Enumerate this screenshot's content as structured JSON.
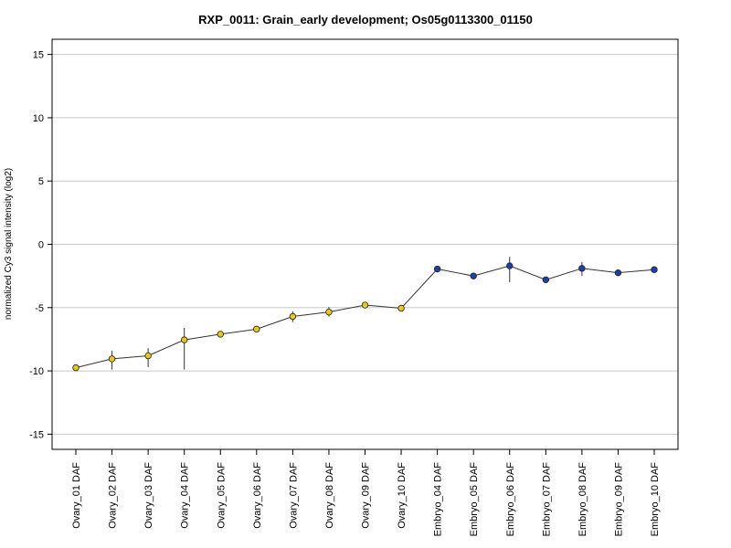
{
  "chart_data": {
    "type": "line",
    "title": "RXP_0011: Grain_early development; Os05g0113300_01150",
    "xlabel": "",
    "ylabel": "normalized Cy3 signal intensity (log2)",
    "ylim": [
      -16.2,
      16.2
    ],
    "yticks": [
      15,
      10,
      5,
      0,
      -5,
      -10,
      -15
    ],
    "grid": true,
    "categories": [
      "Ovary_01 DAF",
      "Ovary_02 DAF",
      "Ovary_03 DAF",
      "Ovary_04 DAF",
      "Ovary_05 DAF",
      "Ovary_06 DAF",
      "Ovary_07 DAF",
      "Ovary_08 DAF",
      "Ovary_09 DAF",
      "Ovary_10 DAF",
      "Embryo_04 DAF",
      "Embryo_05 DAF",
      "Embryo_06 DAF",
      "Embryo_07 DAF",
      "Embryo_08 DAF",
      "Embryo_09 DAF",
      "Embryo_10 DAF"
    ],
    "values": [
      -9.75,
      -9.05,
      -8.8,
      -7.55,
      -7.1,
      -6.7,
      -5.7,
      -5.35,
      -4.8,
      -5.05,
      -1.95,
      -2.5,
      -1.7,
      -2.8,
      -1.9,
      -2.25,
      -2.0
    ],
    "errors": [
      [
        -9.95,
        -9.55
      ],
      [
        -9.9,
        -8.4
      ],
      [
        -9.7,
        -8.2
      ],
      [
        -9.9,
        -6.6
      ],
      [
        -7.3,
        -6.9
      ],
      [
        -6.85,
        -6.55
      ],
      [
        -6.15,
        -5.3
      ],
      [
        -5.7,
        -4.95
      ],
      [
        -5.0,
        -4.55
      ],
      [
        -5.2,
        -4.9
      ],
      [
        -2.15,
        -1.75
      ],
      [
        -2.6,
        -2.4
      ],
      [
        -3.0,
        -1.0
      ],
      [
        -2.95,
        -2.65
      ],
      [
        -2.5,
        -1.4
      ],
      [
        -2.4,
        -2.1
      ],
      [
        -2.15,
        -1.85
      ]
    ],
    "point_colors": [
      "#e8c81a",
      "#e8c81a",
      "#e8c81a",
      "#e8c81a",
      "#e8c81a",
      "#e8c81a",
      "#e8c81a",
      "#e8c81a",
      "#e8c81a",
      "#e8c81a",
      "#1f3fa8",
      "#1f3fa8",
      "#1f3fa8",
      "#1f3fa8",
      "#1f3fa8",
      "#1f3fa8",
      "#1f3fa8"
    ],
    "line_color": "#333333",
    "grid_color": "#c8c8c8"
  }
}
